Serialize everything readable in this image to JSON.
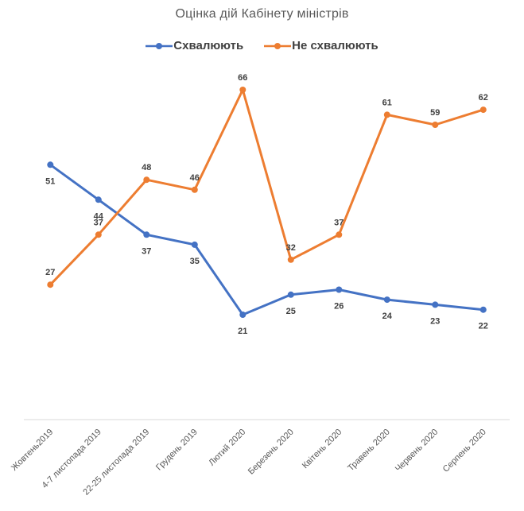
{
  "chart_data": {
    "type": "line",
    "title": "Оцінка дій Кабінету міністрів",
    "categories": [
      "Жовтень2019",
      "4-7 листопада 2019",
      "22-25 листопада 2019",
      "Грудень 2019",
      "Лютий 2020",
      "Березень 2020",
      "Квітень 2020",
      "Травень 2020",
      "Червень 2020",
      "Серпень 2020"
    ],
    "series": [
      {
        "name": "Схвалюють",
        "color": "#4472C4",
        "values": [
          51,
          44,
          37,
          35,
          21,
          25,
          26,
          24,
          23,
          22
        ],
        "label_position": "below"
      },
      {
        "name": "Не схвалюють",
        "color": "#ED7D31",
        "values": [
          27,
          37,
          48,
          46,
          66,
          32,
          37,
          61,
          59,
          62
        ],
        "label_position": "above"
      }
    ],
    "ylim": [
      0,
      70
    ],
    "grid": false,
    "yaxis_visible": false,
    "data_labels": true,
    "legend_position": "top",
    "xlabel": "",
    "ylabel": "",
    "colors": {
      "title": "#595959",
      "legend_text": "#404040",
      "data_label": "#404040",
      "axis_line": "#D9D9D9",
      "tick_label": "#595959",
      "background": "#FFFFFF"
    }
  }
}
